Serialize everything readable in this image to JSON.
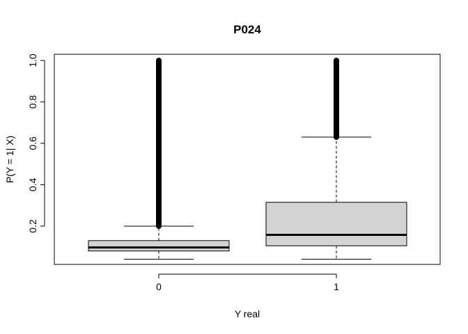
{
  "chart_data": {
    "type": "boxplot",
    "title": "P024",
    "xlabel": "Y real",
    "ylabel": "P(Y = 1| X)",
    "categories": [
      "0",
      "1"
    ],
    "ylim": [
      0.015,
      1.03
    ],
    "yticks": [
      0.2,
      0.4,
      0.6,
      0.8,
      1.0
    ],
    "ytick_labels": [
      "0.2",
      "0.4",
      "0.6",
      "0.8",
      "1.0"
    ],
    "grid": false,
    "legend": "none",
    "box_fill": "#d3d3d3",
    "series": [
      {
        "category": "0",
        "whisker_low": 0.04,
        "q1": 0.08,
        "median": 0.097,
        "q3": 0.13,
        "whisker_high": 0.2,
        "outlier_range": [
          0.2,
          1.0
        ]
      },
      {
        "category": "1",
        "whisker_low": 0.04,
        "q1": 0.105,
        "median": 0.158,
        "q3": 0.315,
        "whisker_high": 0.63,
        "outlier_range": [
          0.63,
          1.0
        ]
      }
    ]
  }
}
